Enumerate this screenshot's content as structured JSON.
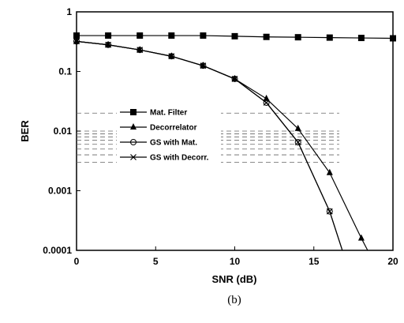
{
  "chart_data": {
    "type": "line",
    "title": "",
    "caption": "(b)",
    "xlabel": "SNR (dB)",
    "ylabel": "BER",
    "xlim": [
      0,
      20
    ],
    "ylim": [
      0.0001,
      1
    ],
    "yscale": "log",
    "grid": false,
    "legend_position": "center-left",
    "x_ticks": [
      0,
      5,
      10,
      15,
      20
    ],
    "x_tick_labels": [
      "0",
      "5",
      "10",
      "15",
      "20"
    ],
    "y_ticks": [
      1,
      0.1,
      0.01,
      0.001,
      0.0001
    ],
    "y_tick_labels": [
      "1",
      "0.1",
      "0.01",
      "0.001",
      "0.0001"
    ],
    "series": [
      {
        "name": "Mat. Filter",
        "marker": "square",
        "x": [
          0,
          2,
          4,
          6,
          8,
          10,
          12,
          14,
          16,
          18,
          20
        ],
        "y": [
          0.4,
          0.4,
          0.4,
          0.4,
          0.4,
          0.39,
          0.38,
          0.375,
          0.37,
          0.365,
          0.36
        ]
      },
      {
        "name": "Decorrelator",
        "marker": "triangle",
        "x": [
          0,
          2,
          4,
          6,
          8,
          10,
          12,
          14,
          16,
          18,
          18.4
        ],
        "y": [
          0.32,
          0.28,
          0.23,
          0.18,
          0.125,
          0.075,
          0.035,
          0.011,
          0.002,
          0.00016,
          0.0001
        ]
      },
      {
        "name": "GS with Mat.",
        "marker": "circle-open",
        "x": [
          0,
          2,
          4,
          6,
          8,
          10,
          12,
          14,
          16,
          16.8
        ],
        "y": [
          0.32,
          0.28,
          0.23,
          0.18,
          0.125,
          0.075,
          0.03,
          0.0065,
          0.00045,
          0.0001
        ]
      },
      {
        "name": "GS with Decorr.",
        "marker": "x",
        "x": [
          0,
          2,
          4,
          6,
          8,
          10,
          12,
          14,
          16,
          16.8
        ],
        "y": [
          0.32,
          0.28,
          0.23,
          0.18,
          0.125,
          0.075,
          0.03,
          0.0065,
          0.00045,
          0.0001
        ]
      }
    ],
    "dashed_lines_y": [
      0.02,
      0.01,
      0.009,
      0.008,
      0.007,
      0.006,
      0.005,
      0.004,
      0.003
    ],
    "colors": {
      "line": "#000000",
      "dash": "#666666"
    }
  }
}
